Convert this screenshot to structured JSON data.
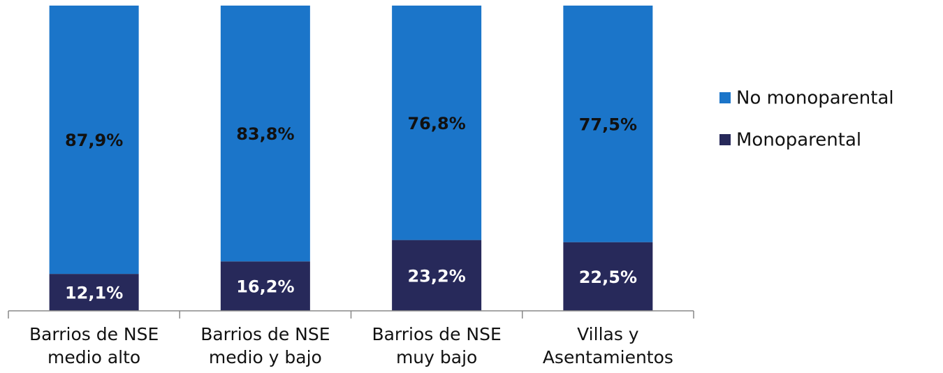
{
  "chart_data": {
    "type": "stacked_bar",
    "categories": [
      "Barrios de NSE medio alto",
      "Barrios de NSE medio y bajo",
      "Barrios de NSE muy bajo",
      "Villas y Asentamientos"
    ],
    "series": [
      {
        "name": "Monoparental",
        "color": "#27295a",
        "values": [
          12.1,
          16.2,
          23.2,
          22.5
        ],
        "value_labels": [
          "12,1%",
          "16,2%",
          "23,2%",
          "22,5%"
        ]
      },
      {
        "name": "No monoparental",
        "color": "#1b75c9",
        "values": [
          87.9,
          83.8,
          76.8,
          77.5
        ],
        "value_labels": [
          "87,9%",
          "83,8%",
          "76,8%",
          "77,5%"
        ]
      }
    ],
    "ylim": [
      0,
      100
    ],
    "legend": "right"
  }
}
